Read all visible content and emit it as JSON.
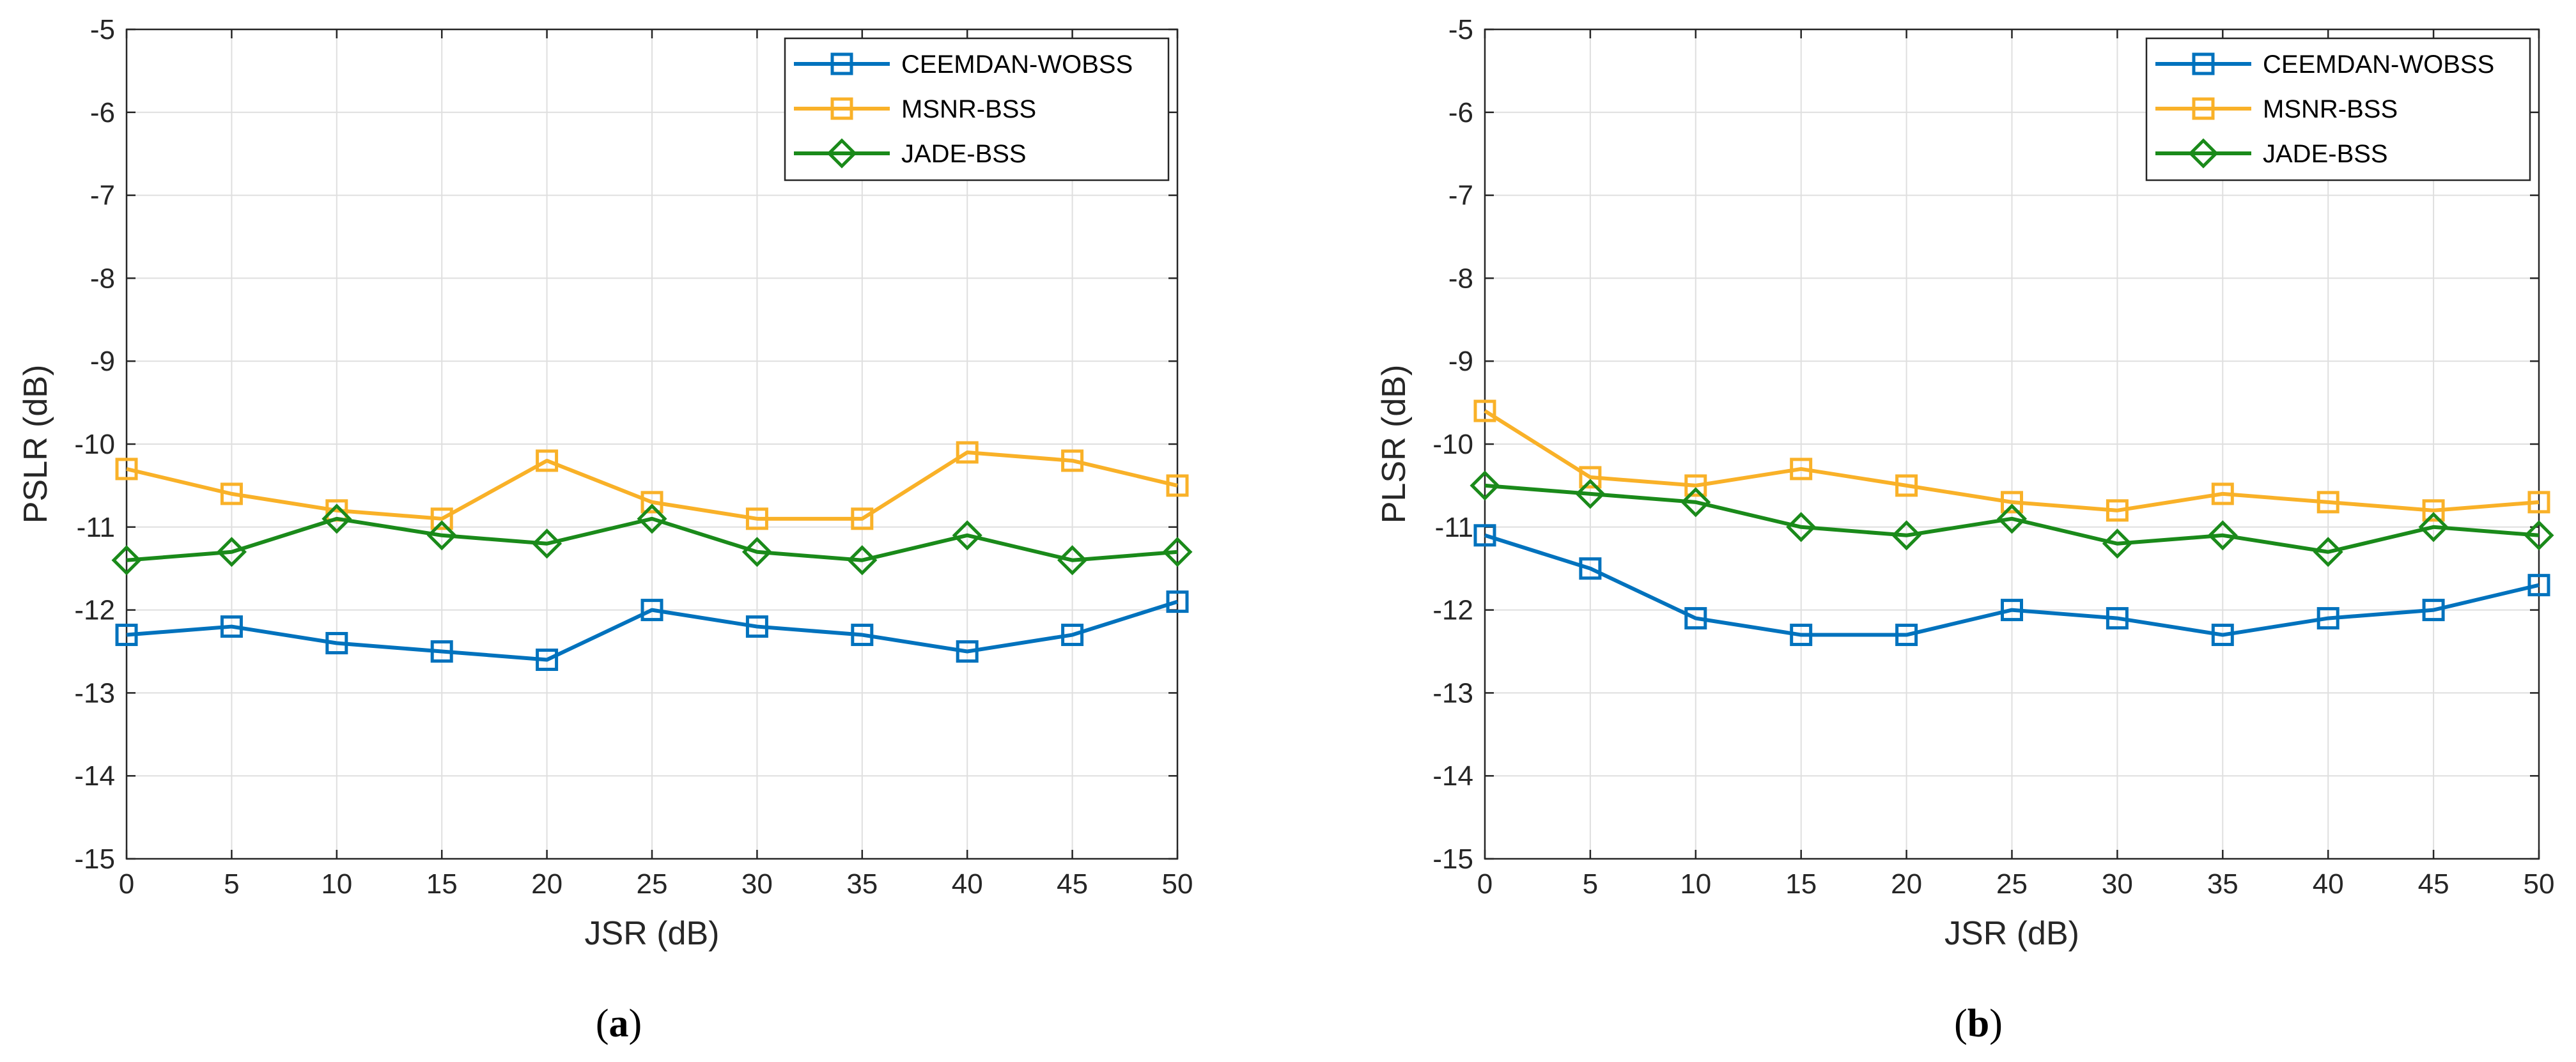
{
  "chart_data": [
    {
      "type": "line",
      "caption": "a",
      "xlabel": "JSR (dB)",
      "ylabel": "PSLR (dB)",
      "xlim": [
        0,
        50
      ],
      "ylim": [
        -15,
        -5
      ],
      "xticks": [
        0,
        5,
        10,
        15,
        20,
        25,
        30,
        35,
        40,
        45,
        50
      ],
      "yticks": [
        -15,
        -14,
        -13,
        -12,
        -11,
        -10,
        -9,
        -8,
        -7,
        -6,
        -5
      ],
      "grid": true,
      "legend_position": "top-right",
      "x": [
        0,
        5,
        10,
        15,
        20,
        25,
        30,
        35,
        40,
        45,
        50
      ],
      "series": [
        {
          "name": "CEEMDAN-WOBSS",
          "marker": "square",
          "color": "#0072BD",
          "values": [
            -12.3,
            -12.2,
            -12.4,
            -12.5,
            -12.6,
            -12.0,
            -12.2,
            -12.3,
            -12.5,
            -12.3,
            -11.9
          ]
        },
        {
          "name": "MSNR-BSS",
          "marker": "square",
          "color": "#F9B128",
          "values": [
            -10.3,
            -10.6,
            -10.8,
            -10.9,
            -10.2,
            -10.7,
            -10.9,
            -10.9,
            -10.1,
            -10.2,
            -10.5
          ]
        },
        {
          "name": "JADE-BSS",
          "marker": "diamond",
          "color": "#1A8A1A",
          "values": [
            -11.4,
            -11.3,
            -10.9,
            -11.1,
            -11.2,
            -10.9,
            -11.3,
            -11.4,
            -11.1,
            -11.4,
            -11.3
          ]
        }
      ]
    },
    {
      "type": "line",
      "caption": "b",
      "xlabel": "JSR (dB)",
      "ylabel": "PLSR (dB)",
      "xlim": [
        0,
        50
      ],
      "ylim": [
        -15,
        -5
      ],
      "xticks": [
        0,
        5,
        10,
        15,
        20,
        25,
        30,
        35,
        40,
        45,
        50
      ],
      "yticks": [
        -15,
        -14,
        -13,
        -12,
        -11,
        -10,
        -9,
        -8,
        -7,
        -6,
        -5
      ],
      "grid": true,
      "legend_position": "top-right",
      "x": [
        0,
        5,
        10,
        15,
        20,
        25,
        30,
        35,
        40,
        45,
        50
      ],
      "series": [
        {
          "name": "CEEMDAN-WOBSS",
          "marker": "square",
          "color": "#0072BD",
          "values": [
            -11.1,
            -11.5,
            -12.1,
            -12.3,
            -12.3,
            -12.0,
            -12.1,
            -12.3,
            -12.1,
            -12.0,
            -11.7
          ]
        },
        {
          "name": "MSNR-BSS",
          "marker": "square",
          "color": "#F9B128",
          "values": [
            -9.6,
            -10.4,
            -10.5,
            -10.3,
            -10.5,
            -10.7,
            -10.8,
            -10.6,
            -10.7,
            -10.8,
            -10.7
          ]
        },
        {
          "name": "JADE-BSS",
          "marker": "diamond",
          "color": "#1A8A1A",
          "values": [
            -10.5,
            -10.6,
            -10.7,
            -11.0,
            -11.1,
            -10.9,
            -11.2,
            -11.1,
            -11.3,
            -11.0,
            -11.1
          ]
        }
      ]
    }
  ]
}
